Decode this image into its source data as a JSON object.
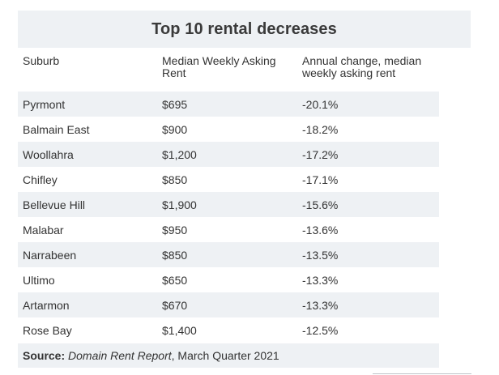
{
  "title": "Top 10 rental decreases",
  "columns": {
    "suburb": "Suburb",
    "rent": "Median Weekly Asking Rent",
    "change": "Annual change, median weekly asking rent"
  },
  "rows": [
    {
      "suburb": "Pyrmont",
      "rent": "$695",
      "change": "-20.1%"
    },
    {
      "suburb": "Balmain East",
      "rent": "$900",
      "change": "-18.2%"
    },
    {
      "suburb": "Woollahra",
      "rent": "$1,200",
      "change": "-17.2%"
    },
    {
      "suburb": "Chifley",
      "rent": "$850",
      "change": "-17.1%"
    },
    {
      "suburb": "Bellevue Hill",
      "rent": "$1,900",
      "change": "-15.6%"
    },
    {
      "suburb": "Malabar",
      "rent": "$950",
      "change": "-13.6%"
    },
    {
      "suburb": "Narrabeen",
      "rent": "$850",
      "change": "-13.5%"
    },
    {
      "suburb": "Ultimo",
      "rent": "$650",
      "change": "-13.3%"
    },
    {
      "suburb": "Artarmon",
      "rent": "$670",
      "change": "-13.3%"
    },
    {
      "suburb": "Rose Bay",
      "rent": "$1,400",
      "change": "-12.5%"
    }
  ],
  "source": {
    "label": "Source:",
    "publication": "Domain Rent Report",
    "period": ", March Quarter 2021"
  }
}
